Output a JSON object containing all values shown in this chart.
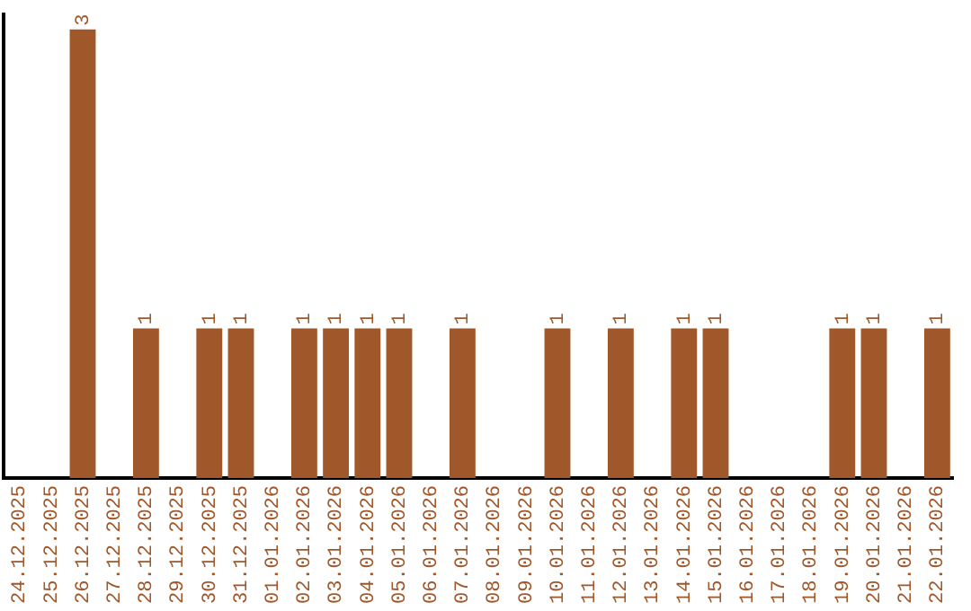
{
  "chart_data": {
    "type": "bar",
    "categories": [
      "24.12.2025",
      "25.12.2025",
      "26.12.2025",
      "27.12.2025",
      "28.12.2025",
      "29.12.2025",
      "30.12.2025",
      "31.12.2025",
      "01.01.2026",
      "02.01.2026",
      "03.01.2026",
      "04.01.2026",
      "05.01.2026",
      "06.01.2026",
      "07.01.2026",
      "08.01.2026",
      "09.01.2026",
      "10.01.2026",
      "11.01.2026",
      "12.01.2026",
      "13.01.2026",
      "14.01.2026",
      "15.01.2026",
      "16.01.2026",
      "17.01.2026",
      "18.01.2026",
      "19.01.2026",
      "20.01.2026",
      "21.01.2026",
      "22.01.2026"
    ],
    "values": [
      0,
      0,
      3,
      0,
      1,
      0,
      1,
      1,
      0,
      1,
      1,
      1,
      1,
      0,
      1,
      0,
      0,
      1,
      0,
      1,
      0,
      1,
      1,
      0,
      0,
      0,
      1,
      1,
      0,
      1
    ],
    "value_labels": [
      null,
      null,
      "3",
      null,
      "1",
      null,
      "1",
      "1",
      null,
      "1",
      "1",
      "1",
      "1",
      null,
      "1",
      null,
      null,
      "1",
      null,
      "1",
      null,
      "1",
      "1",
      null,
      null,
      null,
      "1",
      "1",
      null,
      "1"
    ],
    "color": "#a0572a",
    "ylim": [
      0,
      3.1
    ],
    "tick_labels": "x",
    "grid": false,
    "legend": false
  }
}
